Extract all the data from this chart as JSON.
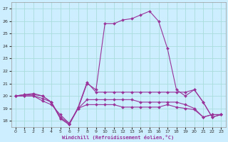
{
  "xlabel": "Windchill (Refroidissement éolien,°C)",
  "bg_color": "#cceeff",
  "grid_color": "#aadddd",
  "line_color": "#993399",
  "ylim": [
    17.5,
    27.5
  ],
  "xlim": [
    -0.5,
    23.5
  ],
  "yticks": [
    18,
    19,
    20,
    21,
    22,
    23,
    24,
    25,
    26,
    27
  ],
  "xticks": [
    0,
    1,
    2,
    3,
    4,
    5,
    6,
    7,
    8,
    9,
    10,
    11,
    12,
    13,
    14,
    15,
    16,
    17,
    18,
    19,
    20,
    21,
    22,
    23
  ],
  "series": [
    {
      "x": [
        0,
        1,
        2,
        3,
        4,
        5,
        6,
        7,
        8,
        9,
        10,
        11,
        12,
        13,
        14,
        15,
        16,
        17,
        18,
        19,
        20,
        21,
        22,
        23
      ],
      "y": [
        20.0,
        20.1,
        20.2,
        20.0,
        19.5,
        18.2,
        17.7,
        19.0,
        21.0,
        20.5,
        25.8,
        25.8,
        26.1,
        26.2,
        26.5,
        26.8,
        26.0,
        23.8,
        20.5,
        20.0,
        20.5,
        19.5,
        18.3,
        18.5
      ]
    },
    {
      "x": [
        0,
        1,
        2,
        3,
        4,
        5,
        6,
        7,
        8,
        9,
        10,
        11,
        12,
        13,
        14,
        15,
        16,
        17,
        18,
        19,
        20,
        21,
        22,
        23
      ],
      "y": [
        20.0,
        20.1,
        20.1,
        20.0,
        19.5,
        18.2,
        17.7,
        19.1,
        21.1,
        20.3,
        20.3,
        20.3,
        20.3,
        20.3,
        20.3,
        20.3,
        20.3,
        20.3,
        20.3,
        20.3,
        20.5,
        19.5,
        18.3,
        18.5
      ]
    },
    {
      "x": [
        0,
        1,
        2,
        3,
        4,
        5,
        6,
        7,
        8,
        9,
        10,
        11,
        12,
        13,
        14,
        15,
        16,
        17,
        18,
        19,
        20,
        21,
        22,
        23
      ],
      "y": [
        20.0,
        20.0,
        20.0,
        19.8,
        19.5,
        18.3,
        17.8,
        19.0,
        19.7,
        19.7,
        19.7,
        19.7,
        19.7,
        19.7,
        19.5,
        19.5,
        19.5,
        19.5,
        19.5,
        19.3,
        19.0,
        18.3,
        18.5,
        18.5
      ]
    },
    {
      "x": [
        0,
        1,
        2,
        3,
        4,
        5,
        6,
        7,
        8,
        9,
        10,
        11,
        12,
        13,
        14,
        15,
        16,
        17,
        18,
        19,
        20,
        21,
        22,
        23
      ],
      "y": [
        20.0,
        20.0,
        20.0,
        19.6,
        19.3,
        18.5,
        17.8,
        19.0,
        19.3,
        19.3,
        19.3,
        19.3,
        19.1,
        19.1,
        19.1,
        19.1,
        19.1,
        19.3,
        19.1,
        19.0,
        18.9,
        18.3,
        18.5,
        18.5
      ]
    }
  ]
}
